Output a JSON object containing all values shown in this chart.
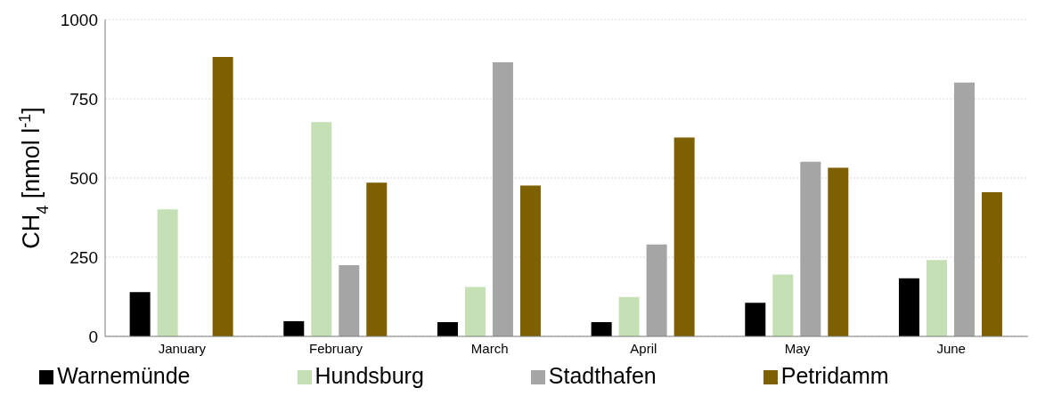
{
  "chart_data": {
    "type": "bar",
    "ylabel": "CH$_{4}$ [nmol l$^{-1}$]",
    "categories": [
      "January",
      "February",
      "March",
      "April",
      "May",
      "June"
    ],
    "series": [
      {
        "name": "Warnemünde",
        "color": "#000000",
        "values": [
          140,
          48,
          45,
          45,
          106,
          183
        ]
      },
      {
        "name": "Hundsburg",
        "color": "#c5e0b4",
        "values": [
          401,
          676,
          156,
          124,
          195,
          241
        ]
      },
      {
        "name": "Stadthafen",
        "color": "#a5a5a5",
        "values": [
          null,
          225,
          865,
          290,
          551,
          801
        ]
      },
      {
        "name": "Petridamm",
        "color": "#7f6000",
        "values": [
          882,
          485,
          476,
          628,
          532,
          455
        ]
      }
    ],
    "ylim": [
      0,
      1000
    ],
    "yticks": [
      0,
      250,
      500,
      750,
      1000
    ],
    "grid": "y",
    "legend": "bottom"
  }
}
